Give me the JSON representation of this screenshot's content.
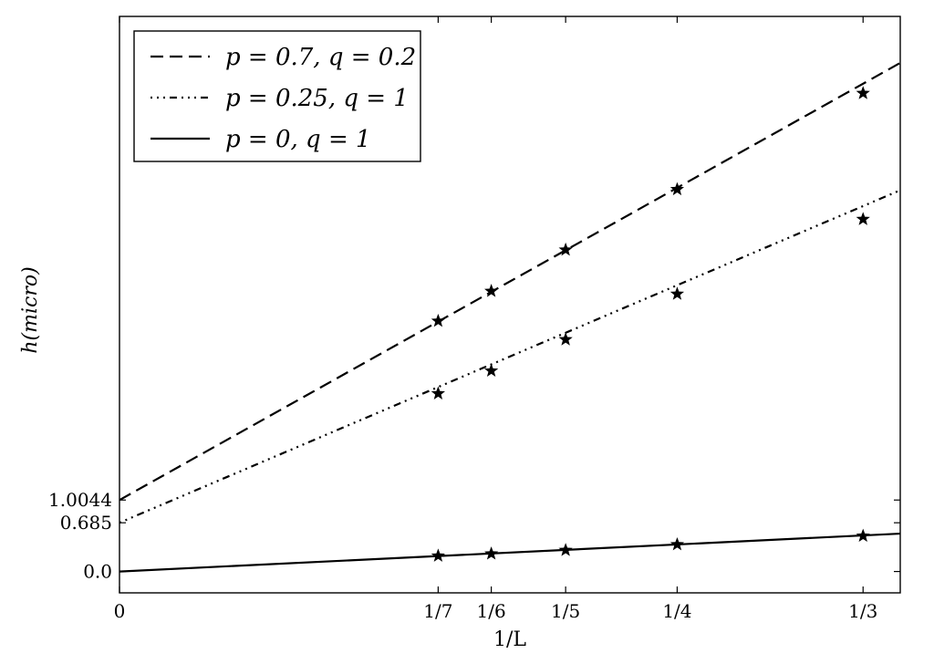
{
  "chart_data": {
    "type": "line",
    "title": "",
    "xlabel": "1/L",
    "ylabel": "h(micro)",
    "xlim": [
      0,
      0.35
    ],
    "ylim": [
      -0.3,
      7.8
    ],
    "grid": false,
    "legend_position": "top-left",
    "x_ticks": [
      {
        "value": 0,
        "label": "0"
      },
      {
        "value": 0.142857,
        "label": "1/7"
      },
      {
        "value": 0.166667,
        "label": "1/6"
      },
      {
        "value": 0.2,
        "label": "1/5"
      },
      {
        "value": 0.25,
        "label": "1/4"
      },
      {
        "value": 0.333333,
        "label": "1/3"
      }
    ],
    "y_ticks": [
      {
        "value": 0.0,
        "label": "0.0"
      },
      {
        "value": 0.685,
        "label": "0.685"
      },
      {
        "value": 1.0044,
        "label": "1.0044"
      }
    ],
    "series": [
      {
        "name": "p = 0.7, q = 0.2",
        "legend_parts": [
          "p = 0.7,",
          "q = 0.2"
        ],
        "style": "dashed",
        "intercept": 1.0044,
        "slope": 17.55,
        "points": [
          [
            0.142857,
            3.52
          ],
          [
            0.166667,
            3.94
          ],
          [
            0.2,
            4.52
          ],
          [
            0.25,
            5.37
          ],
          [
            0.333333,
            6.72
          ]
        ]
      },
      {
        "name": "p = 0.25, q = 1",
        "legend_parts": [
          "p = 0.25,",
          "q = 1"
        ],
        "style": "dashdot",
        "intercept": 0.685,
        "slope": 13.35,
        "points": [
          [
            0.142857,
            2.5
          ],
          [
            0.166667,
            2.82
          ],
          [
            0.2,
            3.26
          ],
          [
            0.25,
            3.9
          ],
          [
            0.333333,
            4.95
          ]
        ]
      },
      {
        "name": "p = 0, q = 1",
        "legend_parts": [
          "p = 0,",
          "q = 1"
        ],
        "style": "solid",
        "intercept": 0.0,
        "slope": 1.52,
        "points": [
          [
            0.142857,
            0.22
          ],
          [
            0.166667,
            0.25
          ],
          [
            0.2,
            0.3
          ],
          [
            0.25,
            0.38
          ],
          [
            0.333333,
            0.5
          ]
        ]
      }
    ]
  }
}
